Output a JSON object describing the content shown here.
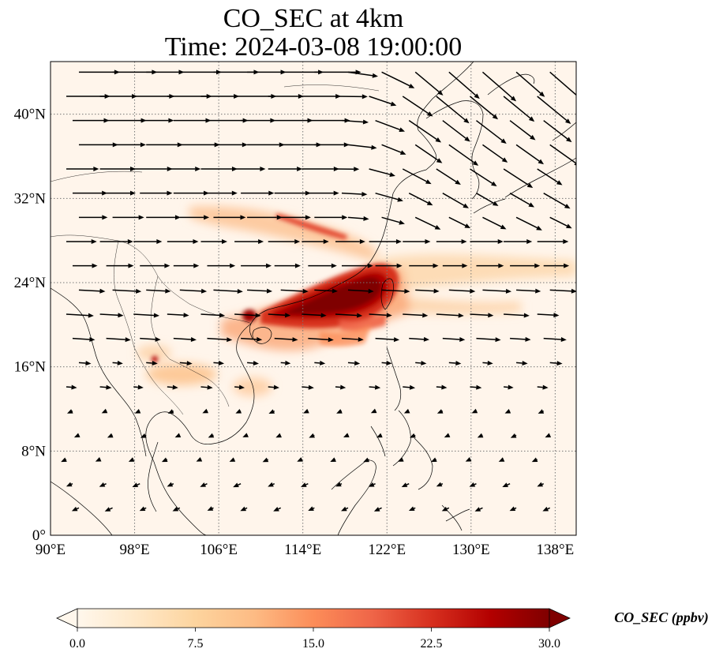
{
  "figure": {
    "title_line1": "CO_SEC at 4km",
    "title_line2": "Time: 2024-03-08 19:00:00"
  },
  "map": {
    "projection": "PlateCarree",
    "lon_range": [
      90,
      140
    ],
    "lat_range": [
      0,
      45
    ],
    "lon_ticks": [
      {
        "value": 90,
        "label": "90°E"
      },
      {
        "value": 98,
        "label": "98°E"
      },
      {
        "value": 106,
        "label": "106°E"
      },
      {
        "value": 114,
        "label": "114°E"
      },
      {
        "value": 122,
        "label": "122°E"
      },
      {
        "value": 130,
        "label": "130°E"
      },
      {
        "value": 138,
        "label": "138°E"
      }
    ],
    "lat_ticks": [
      {
        "value": 0,
        "label": "0°"
      },
      {
        "value": 8,
        "label": "8°N"
      },
      {
        "value": 16,
        "label": "16°N"
      },
      {
        "value": 24,
        "label": "24°N"
      },
      {
        "value": 32,
        "label": "32°N"
      },
      {
        "value": 40,
        "label": "40°N"
      }
    ],
    "gridlines": "dotted grey",
    "background_color": "#fff5eb",
    "wind_vectors": "black arrows, westerly flow north of ~18°N, weak north-easterly flow to the south"
  },
  "chart_data": {
    "type": "heatmap",
    "variable": "CO_SEC",
    "units": "ppbv",
    "colormap": "OrRd",
    "value_range": [
      0.0,
      30.0
    ],
    "extend": "both",
    "hotspots": [
      {
        "region": "south-east China / Taiwan Strait",
        "lon": 118,
        "lat": 23,
        "level": "≥30"
      },
      {
        "region": "Gulf of Tonkin / Hainan",
        "lon": 109,
        "lat": 20.5,
        "level": "≥30"
      },
      {
        "region": "plume over East China Sea to the east",
        "lon": 130,
        "lat": 25,
        "level": "7.5–15"
      },
      {
        "region": "Yangtze plume",
        "lon": 116,
        "lat": 29.5,
        "level": "15–22.5"
      },
      {
        "region": "northern Thailand",
        "lon": 100,
        "lat": 16.5,
        "level": "20–27"
      }
    ]
  },
  "colorbar": {
    "label": "CO_SEC (ppbv)",
    "ticks": [
      {
        "value": 0,
        "label": "0.0"
      },
      {
        "value": 7.5,
        "label": "7.5"
      },
      {
        "value": 15,
        "label": "15.0"
      },
      {
        "value": 22.5,
        "label": "22.5"
      },
      {
        "value": 30,
        "label": "30.0"
      }
    ],
    "colors": [
      "#fff7ec",
      "#fee8c8",
      "#fdd49e",
      "#fdbb84",
      "#fc8d59",
      "#ef6548",
      "#d7301f",
      "#b30000",
      "#7f0000"
    ]
  }
}
